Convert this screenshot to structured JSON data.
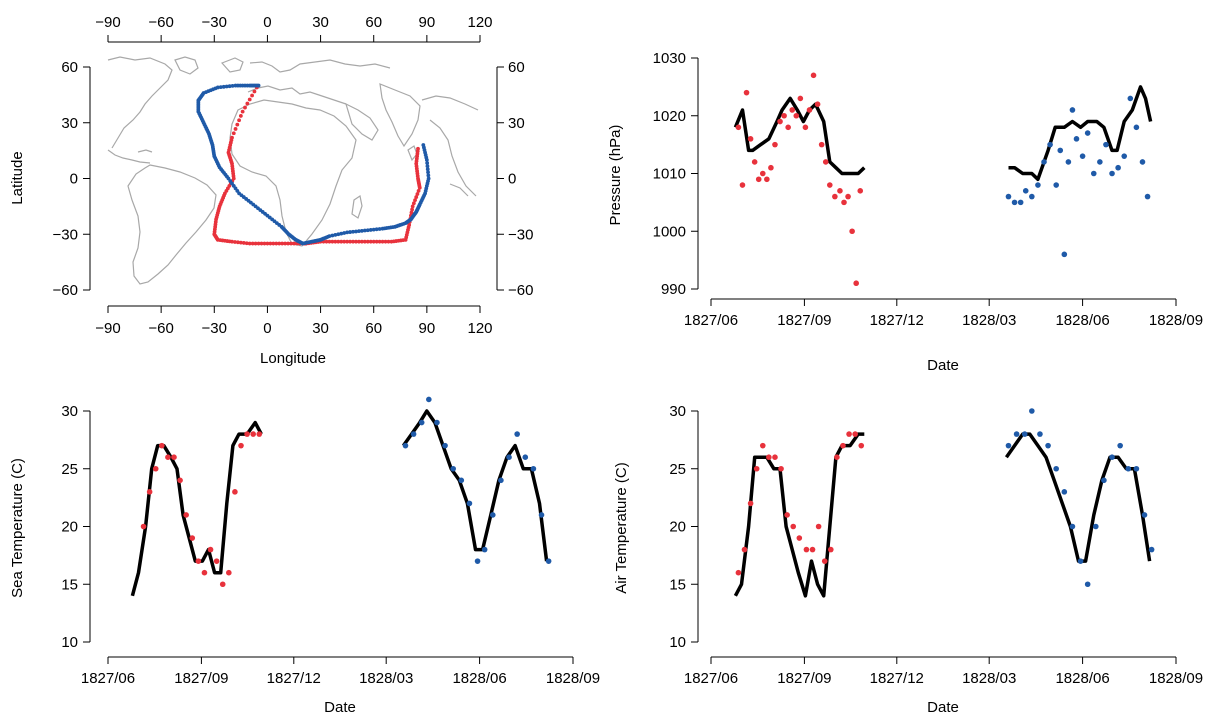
{
  "colors": {
    "leg1": "#e8323c",
    "leg2": "#1f5aa8",
    "model": "#000000",
    "land": "#a8a8a8"
  },
  "chart_data": [
    {
      "type": "scatter",
      "panel": "map",
      "xlabel": "Longitude",
      "ylabel": "Latitude",
      "xlim": [
        -90,
        120
      ],
      "ylim": [
        -60,
        60
      ],
      "xticks": [
        -90,
        -60,
        -30,
        0,
        30,
        60,
        90,
        120
      ],
      "yticks": [
        -60,
        -30,
        0,
        30,
        60
      ],
      "tick_labels_x": [
        "−90",
        "−60",
        "−30",
        "0",
        "30",
        "60",
        "90",
        "120"
      ],
      "tick_labels_y": [
        "−60",
        "−30",
        "0",
        "30",
        "60"
      ],
      "series": [
        {
          "color": "#e8323c",
          "x": [
            -6,
            -14,
            -20,
            -22,
            -20,
            -19,
            -24,
            -27,
            -29,
            -30,
            -28,
            -20,
            -10,
            0,
            10,
            20,
            22,
            30,
            40,
            50,
            60,
            70,
            78,
            80,
            82,
            86,
            85,
            84,
            85
          ],
          "y": [
            49,
            36,
            22,
            14,
            8,
            0,
            -8,
            -15,
            -22,
            -30,
            -33,
            -34,
            -35,
            -35,
            -35,
            -35,
            -35,
            -34,
            -34,
            -34,
            -34,
            -34,
            -33,
            -25,
            -15,
            -5,
            0,
            8,
            16
          ]
        },
        {
          "color": "#1f5aa8",
          "x": [
            88,
            90,
            91,
            89,
            86,
            84,
            81,
            78,
            72,
            65,
            55,
            45,
            35,
            30,
            25,
            20,
            16,
            12,
            8,
            0,
            -8,
            -16,
            -22,
            -27,
            -30,
            -31,
            -33,
            -36,
            -39,
            -39,
            -36,
            -28,
            -18,
            -10,
            -5
          ],
          "y": [
            18,
            10,
            0,
            -8,
            -14,
            -18,
            -22,
            -24,
            -26,
            -27,
            -28,
            -29,
            -31,
            -33,
            -34,
            -35,
            -33,
            -30,
            -26,
            -20,
            -14,
            -8,
            0,
            6,
            12,
            18,
            24,
            30,
            36,
            42,
            46,
            49,
            50,
            50,
            50
          ]
        }
      ]
    },
    {
      "type": "scatter",
      "panel": "pressure",
      "xlabel": "Date",
      "ylabel": "Pressure (hPa)",
      "ylim": [
        990,
        1030
      ],
      "yticks": [
        990,
        1000,
        1010,
        1020,
        1030
      ],
      "xticks": [
        "1827/06",
        "1827/09",
        "1827/12",
        "1828/03",
        "1828/06",
        "1828/09"
      ],
      "line": {
        "x": [
          "1827/06/25",
          "1827/07/02",
          "1827/07/08",
          "1827/07/12",
          "1827/07/20",
          "1827/07/28",
          "1827/08/05",
          "1827/08/10",
          "1827/08/18",
          "1827/08/25",
          "1827/08/31",
          "1827/09/06",
          "1827/09/12",
          "1827/09/20",
          "1827/09/26",
          "1827/10/02",
          "1827/10/08",
          "1827/10/16",
          "1827/10/24",
          "1827/10/30"
        ],
        "y": [
          1018,
          1021,
          1014,
          1014,
          1015,
          1016,
          1019,
          1021,
          1023,
          1021,
          1019,
          1021,
          1022,
          1019,
          1012,
          1011,
          1010,
          1010,
          1010,
          1011
        ],
        "x2": [
          "1828/03/20",
          "1828/03/26",
          "1828/04/03",
          "1828/04/12",
          "1828/04/18",
          "1828/04/28",
          "1828/05/05",
          "1828/05/14",
          "1828/05/22",
          "1828/05/30",
          "1828/06/06",
          "1828/06/15",
          "1828/06/22",
          "1828/06/30",
          "1828/07/05",
          "1828/07/12",
          "1828/07/20",
          "1828/07/28",
          "1828/08/02",
          "1828/08/07"
        ],
        "y2": [
          1011,
          1011,
          1010,
          1010,
          1009,
          1014,
          1018,
          1018,
          1019,
          1018,
          1019,
          1019,
          1018,
          1014,
          1014,
          1019,
          1021,
          1025,
          1023,
          1019
        ]
      },
      "series": [
        {
          "color": "#e8323c",
          "x": [
            "1827/06/28",
            "1827/07/02",
            "1827/07/06",
            "1827/07/10",
            "1827/07/14",
            "1827/07/18",
            "1827/07/22",
            "1827/07/26",
            "1827/07/30",
            "1827/08/03",
            "1827/08/08",
            "1827/08/12",
            "1827/08/16",
            "1827/08/20",
            "1827/08/24",
            "1827/08/28",
            "1827/09/02",
            "1827/09/06",
            "1827/09/10",
            "1827/09/14",
            "1827/09/18",
            "1827/09/22",
            "1827/09/26",
            "1827/10/01",
            "1827/10/06",
            "1827/10/10",
            "1827/10/14",
            "1827/10/18",
            "1827/10/22",
            "1827/10/26"
          ],
          "y": [
            1018,
            1008,
            1024,
            1016,
            1012,
            1009,
            1010,
            1009,
            1011,
            1015,
            1019,
            1020,
            1018,
            1021,
            1020,
            1023,
            1018,
            1021,
            1027,
            1022,
            1015,
            1012,
            1008,
            1006,
            1007,
            1005,
            1006,
            1000,
            991,
            1007
          ]
        },
        {
          "color": "#1f5aa8",
          "x": [
            "1828/03/20",
            "1828/03/26",
            "1828/04/01",
            "1828/04/06",
            "1828/04/12",
            "1828/04/18",
            "1828/04/24",
            "1828/04/30",
            "1828/05/06",
            "1828/05/10",
            "1828/05/14",
            "1828/05/18",
            "1828/05/22",
            "1828/05/26",
            "1828/06/01",
            "1828/06/06",
            "1828/06/12",
            "1828/06/18",
            "1828/06/24",
            "1828/06/30",
            "1828/07/06",
            "1828/07/12",
            "1828/07/18",
            "1828/07/24",
            "1828/07/30",
            "1828/08/04"
          ],
          "y": [
            1006,
            1005,
            1005,
            1007,
            1006,
            1008,
            1012,
            1015,
            1008,
            1014,
            996,
            1012,
            1021,
            1016,
            1013,
            1017,
            1010,
            1012,
            1015,
            1010,
            1011,
            1013,
            1023,
            1018,
            1012,
            1006
          ]
        }
      ]
    },
    {
      "type": "scatter",
      "panel": "sea_temperature",
      "xlabel": "Date",
      "ylabel": "Sea Temperature (C)",
      "ylim": [
        10,
        30
      ],
      "yticks": [
        10,
        15,
        20,
        25,
        30
      ],
      "xticks": [
        "1827/06",
        "1827/09",
        "1827/12",
        "1828/03",
        "1828/06",
        "1828/09"
      ],
      "line": {
        "x": [
          "1827/06/25",
          "1827/07/01",
          "1827/07/08",
          "1827/07/14",
          "1827/07/20",
          "1827/07/26",
          "1827/08/02",
          "1827/08/08",
          "1827/08/14",
          "1827/08/20",
          "1827/08/26",
          "1827/09/02",
          "1827/09/08",
          "1827/09/14",
          "1827/09/20",
          "1827/09/26",
          "1827/10/02",
          "1827/10/08",
          "1827/10/16",
          "1827/10/24",
          "1827/10/30"
        ],
        "y": [
          14,
          16,
          20,
          25,
          27,
          27,
          26,
          25,
          21,
          19,
          17,
          17,
          18,
          16,
          16,
          22,
          27,
          28,
          28,
          29,
          28
        ],
        "x2": [
          "1828/03/18",
          "1828/03/26",
          "1828/04/03",
          "1828/04/10",
          "1828/04/18",
          "1828/04/26",
          "1828/05/04",
          "1828/05/12",
          "1828/05/20",
          "1828/05/28",
          "1828/06/04",
          "1828/06/12",
          "1828/06/20",
          "1828/06/28",
          "1828/07/06",
          "1828/07/14",
          "1828/07/22",
          "1828/07/30",
          "1828/08/06"
        ],
        "y2": [
          27,
          28,
          29,
          30,
          29,
          27,
          25,
          24,
          22,
          18,
          18,
          21,
          24,
          26,
          27,
          25,
          25,
          22,
          17
        ]
      },
      "series": [
        {
          "color": "#e8323c",
          "x": [
            "1827/07/06",
            "1827/07/12",
            "1827/07/18",
            "1827/07/24",
            "1827/07/30",
            "1827/08/05",
            "1827/08/11",
            "1827/08/17",
            "1827/08/23",
            "1827/08/29",
            "1827/09/04",
            "1827/09/10",
            "1827/09/16",
            "1827/09/22",
            "1827/09/28",
            "1827/10/04",
            "1827/10/10",
            "1827/10/16",
            "1827/10/22",
            "1827/10/28"
          ],
          "y": [
            20,
            23,
            25,
            27,
            26,
            26,
            24,
            21,
            19,
            17,
            16,
            18,
            17,
            15,
            16,
            23,
            27,
            28,
            28,
            28
          ]
        },
        {
          "color": "#1f5aa8",
          "x": [
            "1828/03/20",
            "1828/03/28",
            "1828/04/05",
            "1828/04/12",
            "1828/04/20",
            "1828/04/28",
            "1828/05/06",
            "1828/05/14",
            "1828/05/22",
            "1828/05/30",
            "1828/06/06",
            "1828/06/14",
            "1828/06/22",
            "1828/06/30",
            "1828/07/08",
            "1828/07/16",
            "1828/07/24",
            "1828/08/01",
            "1828/08/08"
          ],
          "y": [
            27,
            28,
            29,
            31,
            29,
            27,
            25,
            24,
            22,
            17,
            18,
            21,
            24,
            26,
            28,
            26,
            25,
            21,
            17
          ]
        }
      ]
    },
    {
      "type": "scatter",
      "panel": "air_temperature",
      "xlabel": "Date",
      "ylabel": "Air Temperature (C)",
      "ylim": [
        10,
        30
      ],
      "yticks": [
        10,
        15,
        20,
        25,
        30
      ],
      "xticks": [
        "1827/06",
        "1827/09",
        "1827/12",
        "1828/03",
        "1828/06",
        "1828/09"
      ],
      "line": {
        "x": [
          "1827/06/25",
          "1827/07/01",
          "1827/07/08",
          "1827/07/14",
          "1827/07/20",
          "1827/07/26",
          "1827/08/02",
          "1827/08/08",
          "1827/08/14",
          "1827/08/20",
          "1827/08/26",
          "1827/09/02",
          "1827/09/08",
          "1827/09/14",
          "1827/09/20",
          "1827/09/26",
          "1827/10/02",
          "1827/10/08",
          "1827/10/16",
          "1827/10/24",
          "1827/10/30"
        ],
        "y": [
          14,
          15,
          20,
          26,
          26,
          26,
          25,
          25,
          20,
          18,
          16,
          14,
          17,
          15,
          14,
          20,
          26,
          27,
          27,
          28,
          28
        ],
        "x2": [
          "1828/03/18",
          "1828/03/26",
          "1828/04/03",
          "1828/04/10",
          "1828/04/18",
          "1828/04/26",
          "1828/05/04",
          "1828/05/12",
          "1828/05/20",
          "1828/05/28",
          "1828/06/04",
          "1828/06/12",
          "1828/06/20",
          "1828/06/28",
          "1828/07/06",
          "1828/07/14",
          "1828/07/22",
          "1828/07/30",
          "1828/08/06"
        ],
        "y2": [
          26,
          27,
          28,
          28,
          27,
          26,
          24,
          22,
          20,
          17,
          17,
          21,
          24,
          26,
          26,
          25,
          25,
          21,
          17
        ]
      },
      "series": [
        {
          "color": "#e8323c",
          "x": [
            "1827/06/28",
            "1827/07/04",
            "1827/07/10",
            "1827/07/16",
            "1827/07/22",
            "1827/07/28",
            "1827/08/03",
            "1827/08/09",
            "1827/08/15",
            "1827/08/21",
            "1827/08/27",
            "1827/09/03",
            "1827/09/09",
            "1827/09/15",
            "1827/09/21",
            "1827/09/27",
            "1827/10/03",
            "1827/10/09",
            "1827/10/15",
            "1827/10/21",
            "1827/10/27"
          ],
          "y": [
            16,
            18,
            22,
            25,
            27,
            26,
            26,
            25,
            21,
            20,
            19,
            18,
            18,
            20,
            17,
            18,
            26,
            27,
            28,
            28,
            27
          ]
        },
        {
          "color": "#1f5aa8",
          "x": [
            "1828/03/20",
            "1828/03/28",
            "1828/04/05",
            "1828/04/12",
            "1828/04/20",
            "1828/04/28",
            "1828/05/06",
            "1828/05/14",
            "1828/05/22",
            "1828/05/30",
            "1828/06/06",
            "1828/06/14",
            "1828/06/22",
            "1828/06/30",
            "1828/07/08",
            "1828/07/16",
            "1828/07/24",
            "1828/08/01",
            "1828/08/08"
          ],
          "y": [
            27,
            28,
            28,
            30,
            28,
            27,
            25,
            23,
            20,
            17,
            15,
            20,
            24,
            26,
            27,
            25,
            25,
            21,
            18
          ]
        }
      ]
    }
  ]
}
